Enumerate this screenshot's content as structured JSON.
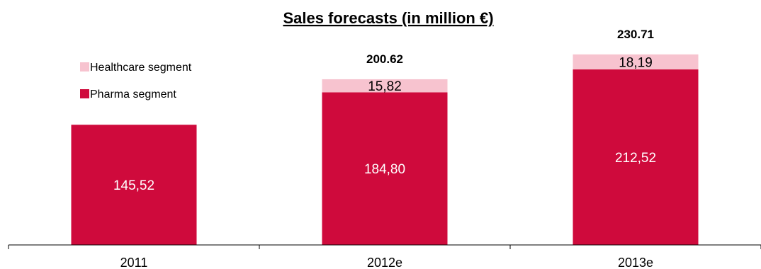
{
  "chart_data": {
    "type": "bar",
    "stacked": true,
    "title": "Sales forecasts (in million €)",
    "categories": [
      "2011",
      "2012e",
      "2013e"
    ],
    "series": [
      {
        "name": "Pharma segment",
        "color": "#cf0a3c",
        "label_color": "#ffffff",
        "values": [
          145.52,
          184.8,
          212.52
        ],
        "value_labels": [
          "145,52",
          "184,80",
          "212,52"
        ]
      },
      {
        "name": "Healthcare segment",
        "color": "#f7c3cf",
        "label_color": "#000000",
        "values": [
          0,
          15.82,
          18.19
        ],
        "value_labels": [
          "",
          "15,82",
          "18,19"
        ]
      }
    ],
    "totals": [
      "",
      "200.62",
      "230.71"
    ],
    "ylim": [
      0,
      240
    ],
    "legend_position": "top-left",
    "grid": false
  }
}
